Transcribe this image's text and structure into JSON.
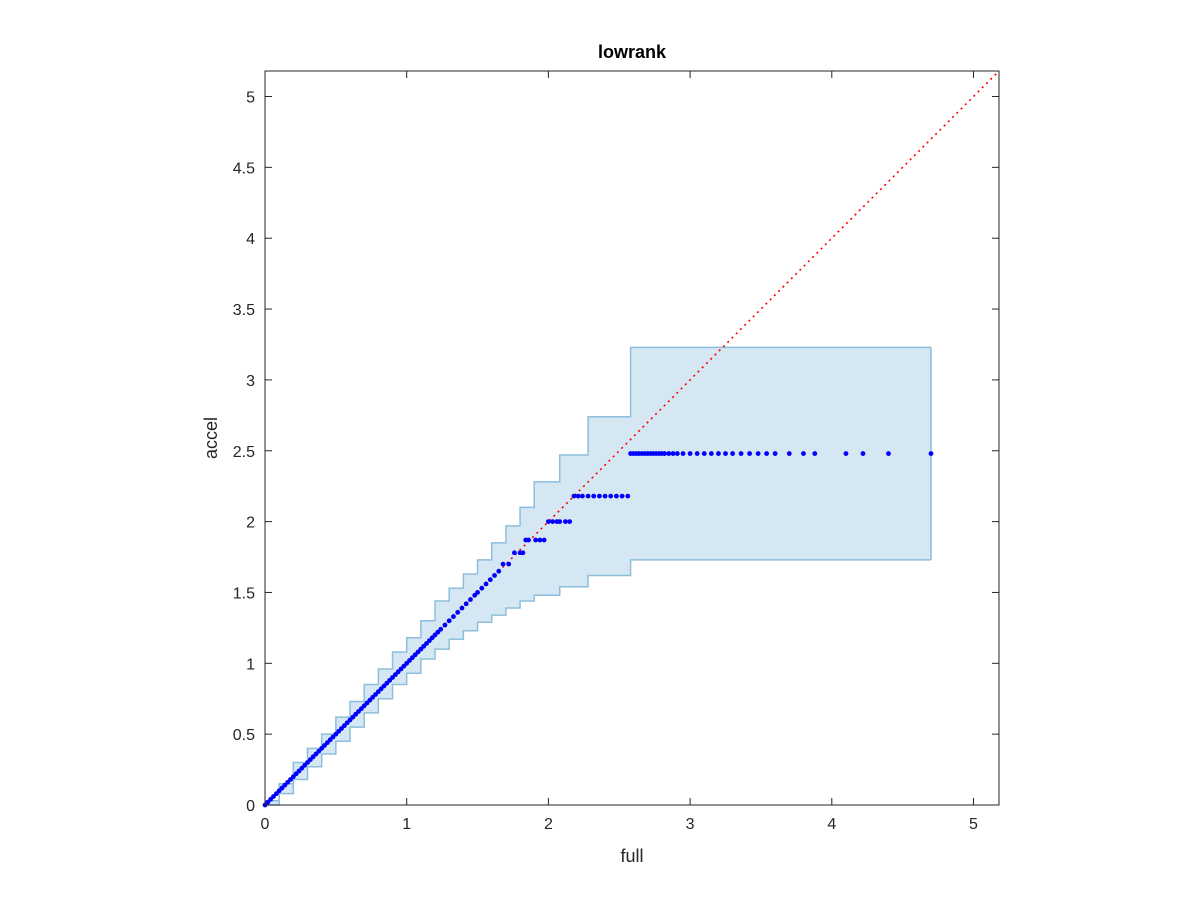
{
  "chart_data": {
    "type": "scatter",
    "title": "lowrank",
    "xlabel": "full",
    "ylabel": "accel",
    "xlim": [
      0,
      5.18
    ],
    "ylim": [
      0,
      5.18
    ],
    "xticks": [
      0,
      1,
      2,
      3,
      4,
      5
    ],
    "xtick_labels": [
      "0",
      "1",
      "2",
      "3",
      "4",
      "5"
    ],
    "yticks": [
      0,
      0.5,
      1,
      1.5,
      2,
      2.5,
      3,
      3.5,
      4,
      4.5,
      5
    ],
    "ytick_labels": [
      "0",
      "0.5",
      "1",
      "1.5",
      "2",
      "2.5",
      "3",
      "3.5",
      "4",
      "4.5",
      "5"
    ],
    "grid": false,
    "colors": {
      "points": "#0000ff",
      "reference_line": "#ff0000",
      "band_fill": "#d6e7f4",
      "band_edge": "#8dbfdc",
      "axes": "#262626"
    },
    "reference_line": {
      "x": [
        0,
        5.18
      ],
      "y": [
        0,
        5.18
      ],
      "style": "dotted"
    },
    "band": {
      "x": [
        0,
        0.1,
        0.2,
        0.3,
        0.4,
        0.5,
        0.6,
        0.7,
        0.8,
        0.9,
        1.0,
        1.1,
        1.2,
        1.3,
        1.4,
        1.5,
        1.6,
        1.7,
        1.8,
        1.9,
        2.08,
        2.28,
        2.58,
        4.7
      ],
      "upper": [
        0.03,
        0.15,
        0.3,
        0.4,
        0.5,
        0.62,
        0.73,
        0.85,
        0.96,
        1.08,
        1.18,
        1.3,
        1.44,
        1.53,
        1.63,
        1.73,
        1.85,
        1.97,
        2.1,
        2.28,
        2.47,
        2.74,
        3.23,
        3.23
      ],
      "lower": [
        0.0,
        0.08,
        0.18,
        0.27,
        0.36,
        0.45,
        0.55,
        0.65,
        0.75,
        0.85,
        0.93,
        1.03,
        1.1,
        1.17,
        1.23,
        1.29,
        1.34,
        1.39,
        1.44,
        1.48,
        1.54,
        1.62,
        1.73,
        1.73
      ]
    },
    "series": [
      {
        "x": [
          0.0,
          0.02,
          0.04,
          0.06,
          0.08,
          0.1,
          0.12,
          0.14,
          0.16,
          0.18,
          0.2,
          0.22,
          0.24,
          0.26,
          0.28,
          0.3,
          0.32,
          0.34,
          0.36,
          0.38,
          0.4,
          0.42,
          0.44,
          0.46,
          0.48,
          0.5,
          0.52,
          0.54,
          0.56,
          0.58,
          0.6,
          0.62,
          0.64,
          0.66,
          0.68,
          0.7,
          0.72,
          0.74,
          0.76,
          0.78,
          0.8,
          0.82,
          0.84,
          0.86,
          0.88,
          0.9,
          0.92,
          0.94,
          0.96,
          0.98,
          1.0,
          1.02,
          1.04,
          1.06,
          1.08,
          1.1,
          1.12,
          1.14,
          1.16,
          1.18,
          1.2,
          1.22,
          1.24,
          1.27,
          1.3,
          1.33,
          1.36,
          1.39,
          1.42,
          1.45,
          1.48,
          1.5,
          1.53,
          1.56,
          1.59,
          1.62,
          1.65,
          1.68,
          1.72,
          1.76,
          1.8,
          1.82,
          1.84,
          1.86,
          1.91,
          1.94,
          1.97,
          2.0,
          2.03,
          2.06,
          2.08,
          2.12,
          2.15,
          2.18,
          2.21,
          2.24,
          2.28,
          2.32,
          2.36,
          2.4,
          2.44,
          2.48,
          2.52,
          2.56,
          2.58,
          2.6,
          2.62,
          2.64,
          2.66,
          2.68,
          2.7,
          2.72,
          2.74,
          2.76,
          2.78,
          2.8,
          2.82,
          2.85,
          2.88,
          2.91,
          2.95,
          3.0,
          3.05,
          3.1,
          3.15,
          3.2,
          3.25,
          3.3,
          3.36,
          3.42,
          3.48,
          3.54,
          3.6,
          3.7,
          3.8,
          3.88,
          4.1,
          4.22,
          4.4,
          4.7
        ],
        "y": [
          0.0,
          0.02,
          0.04,
          0.06,
          0.08,
          0.1,
          0.12,
          0.14,
          0.16,
          0.18,
          0.2,
          0.22,
          0.24,
          0.26,
          0.28,
          0.3,
          0.32,
          0.34,
          0.36,
          0.38,
          0.4,
          0.42,
          0.44,
          0.46,
          0.48,
          0.5,
          0.52,
          0.54,
          0.56,
          0.58,
          0.6,
          0.62,
          0.64,
          0.66,
          0.68,
          0.7,
          0.72,
          0.74,
          0.76,
          0.78,
          0.8,
          0.82,
          0.84,
          0.86,
          0.88,
          0.9,
          0.92,
          0.94,
          0.96,
          0.98,
          1.0,
          1.02,
          1.04,
          1.06,
          1.08,
          1.1,
          1.12,
          1.14,
          1.16,
          1.18,
          1.2,
          1.22,
          1.24,
          1.27,
          1.3,
          1.33,
          1.36,
          1.39,
          1.42,
          1.45,
          1.48,
          1.5,
          1.53,
          1.56,
          1.59,
          1.62,
          1.65,
          1.7,
          1.7,
          1.78,
          1.78,
          1.78,
          1.87,
          1.87,
          1.87,
          1.87,
          1.87,
          2.0,
          2.0,
          2.0,
          2.0,
          2.0,
          2.0,
          2.18,
          2.18,
          2.18,
          2.18,
          2.18,
          2.18,
          2.18,
          2.18,
          2.18,
          2.18,
          2.18,
          2.48,
          2.48,
          2.48,
          2.48,
          2.48,
          2.48,
          2.48,
          2.48,
          2.48,
          2.48,
          2.48,
          2.48,
          2.48,
          2.48,
          2.48,
          2.48,
          2.48,
          2.48,
          2.48,
          2.48,
          2.48,
          2.48,
          2.48,
          2.48,
          2.48,
          2.48,
          2.48,
          2.48,
          2.48,
          2.48,
          2.48,
          2.48,
          2.48,
          2.48,
          2.48,
          2.48
        ]
      }
    ]
  }
}
